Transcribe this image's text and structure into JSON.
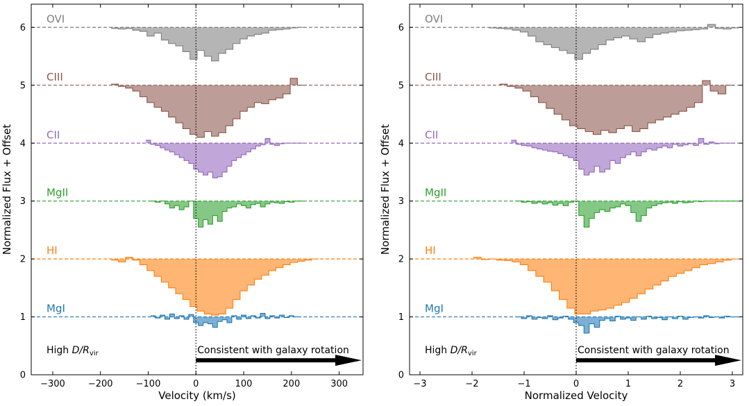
{
  "chart_data": [
    {
      "type": "step-area",
      "xlabel": "Velocity (km/s)",
      "ylabel": "Normalized Flux + Offset",
      "xlim": [
        -345,
        350
      ],
      "ylim": [
        0,
        6.4
      ],
      "xticks": [
        -300,
        -200,
        -100,
        0,
        100,
        200,
        300
      ],
      "xtick_labels": [
        "−300",
        "−200",
        "−100",
        "0",
        "100",
        "200",
        "300"
      ],
      "yticks": [
        0,
        1,
        2,
        3,
        4,
        5,
        6
      ],
      "ytick_labels": [
        "0",
        "1",
        "2",
        "3",
        "4",
        "5",
        "6"
      ],
      "vline_x": 0,
      "annotation_left": "High",
      "annotation_left_math": "D/R",
      "annotation_left_sub": "vir",
      "annotation_right": "Consistent with galaxy rotation",
      "arrow": {
        "from": 0,
        "to": 350,
        "y": 0.25
      },
      "series": [
        {
          "name": "OVI",
          "offset": 6,
          "color": "#7f7f7f",
          "x": [
            -170,
            -155,
            -140,
            -125,
            -110,
            -95,
            -80,
            -65,
            -50,
            -35,
            -20,
            -5,
            10,
            25,
            40,
            55,
            70,
            85,
            100,
            115,
            130,
            145,
            160,
            175,
            190,
            205,
            220
          ],
          "flux": [
            0.98,
            0.97,
            0.98,
            0.95,
            0.93,
            0.85,
            0.9,
            0.78,
            0.72,
            0.68,
            0.58,
            0.45,
            0.6,
            0.5,
            0.42,
            0.55,
            0.62,
            0.72,
            0.8,
            0.85,
            0.88,
            0.9,
            0.95,
            0.96,
            0.97,
            0.99,
            1.0
          ]
        },
        {
          "name": "CIII",
          "offset": 5,
          "color": "#8c564b",
          "x": [
            -170,
            -155,
            -140,
            -125,
            -110,
            -95,
            -80,
            -65,
            -50,
            -35,
            -20,
            -5,
            10,
            25,
            40,
            55,
            70,
            85,
            100,
            115,
            130,
            145,
            160,
            175,
            190,
            205,
            220
          ],
          "flux": [
            1.02,
            0.98,
            0.95,
            0.9,
            0.8,
            0.7,
            0.62,
            0.55,
            0.45,
            0.35,
            0.25,
            0.15,
            0.1,
            0.2,
            0.12,
            0.18,
            0.3,
            0.42,
            0.55,
            0.62,
            0.7,
            0.68,
            0.75,
            0.78,
            0.85,
            1.12,
            1.0
          ]
        },
        {
          "name": "CII",
          "offset": 4,
          "color": "#9467bd",
          "x": [
            -100,
            -90,
            -80,
            -70,
            -60,
            -50,
            -40,
            -30,
            -20,
            -10,
            0,
            10,
            20,
            30,
            40,
            50,
            60,
            70,
            80,
            90,
            100,
            110,
            120,
            130,
            140,
            150,
            160,
            170,
            180,
            190,
            200,
            210,
            220
          ],
          "flux": [
            1.05,
            0.98,
            0.96,
            0.92,
            0.88,
            0.85,
            0.8,
            0.75,
            0.7,
            0.65,
            0.55,
            0.5,
            0.45,
            0.5,
            0.4,
            0.42,
            0.5,
            0.6,
            0.7,
            0.75,
            0.8,
            0.85,
            0.9,
            0.95,
            0.97,
            1.08,
            0.98,
            0.96,
            0.99,
            1.0,
            1.0,
            1.0,
            1.0
          ]
        },
        {
          "name": "MgII",
          "offset": 3,
          "color": "#2ca02c",
          "x": [
            -90,
            -80,
            -70,
            -60,
            -50,
            -40,
            -30,
            -20,
            -10,
            0,
            10,
            20,
            30,
            40,
            50,
            60,
            70,
            80,
            90,
            100,
            110,
            120,
            130,
            140,
            150,
            160,
            170,
            180,
            190,
            200,
            210,
            220
          ],
          "flux": [
            1.0,
            0.98,
            1.0,
            0.95,
            0.88,
            0.92,
            0.85,
            0.9,
            1.0,
            0.7,
            0.55,
            0.68,
            0.6,
            0.75,
            0.65,
            0.82,
            0.88,
            0.9,
            0.95,
            0.92,
            0.88,
            0.94,
            0.96,
            0.9,
            0.95,
            0.98,
            0.97,
            0.96,
            0.99,
            0.98,
            1.0,
            1.0
          ]
        },
        {
          "name": "HI",
          "offset": 2,
          "color": "#ff7f0e",
          "x": [
            -170,
            -155,
            -140,
            -125,
            -110,
            -95,
            -80,
            -65,
            -50,
            -35,
            -20,
            -5,
            10,
            25,
            40,
            55,
            70,
            85,
            100,
            115,
            130,
            145,
            160,
            175,
            190,
            205,
            220,
            235,
            250
          ],
          "flux": [
            0.98,
            0.95,
            1.03,
            0.98,
            0.9,
            0.8,
            0.7,
            0.6,
            0.5,
            0.4,
            0.3,
            0.18,
            0.1,
            0.05,
            0.03,
            0.05,
            0.15,
            0.3,
            0.45,
            0.55,
            0.65,
            0.72,
            0.8,
            0.85,
            0.9,
            0.94,
            0.96,
            0.98,
            1.0
          ]
        },
        {
          "name": "MgI",
          "offset": 1,
          "color": "#1f77b4",
          "x": [
            -90,
            -80,
            -70,
            -60,
            -50,
            -40,
            -30,
            -20,
            -10,
            0,
            10,
            20,
            30,
            40,
            50,
            60,
            70,
            80,
            90,
            100,
            110,
            120,
            130,
            140,
            150,
            160,
            170,
            180,
            190,
            200,
            210
          ],
          "flux": [
            1.02,
            0.98,
            1.03,
            0.96,
            1.05,
            0.97,
            1.02,
            0.96,
            1.04,
            0.9,
            0.85,
            0.9,
            0.88,
            0.82,
            0.92,
            0.95,
            0.9,
            1.02,
            0.96,
            1.03,
            0.97,
            1.02,
            0.98,
            1.06,
            0.97,
            1.02,
            0.98,
            1.03,
            0.99,
            1.02,
            1.0
          ]
        }
      ]
    },
    {
      "type": "step-area",
      "xlabel": "Normalized Velocity",
      "ylabel": "Normalized Flux + Offset",
      "xlim": [
        -3.2,
        3.2
      ],
      "ylim": [
        0,
        6.4
      ],
      "xticks": [
        -3,
        -2,
        -1,
        0,
        1,
        2,
        3
      ],
      "xtick_labels": [
        "−3",
        "−2",
        "−1",
        "0",
        "1",
        "2",
        "3"
      ],
      "yticks": [
        0,
        1,
        2,
        3,
        4,
        5,
        6
      ],
      "ytick_labels": [
        "0",
        "1",
        "2",
        "3",
        "4",
        "5",
        "6"
      ],
      "vline_x": 0,
      "annotation_left": "High",
      "annotation_left_math": "D/R",
      "annotation_left_sub": "vir",
      "annotation_right": "Consistent with galaxy rotation",
      "arrow": {
        "from": 0,
        "to": 3.2,
        "y": 0.25
      },
      "series": [
        {
          "name": "OVI",
          "offset": 6,
          "color": "#7f7f7f",
          "x": [
            -1.6,
            -1.45,
            -1.3,
            -1.15,
            -1.0,
            -0.85,
            -0.7,
            -0.55,
            -0.4,
            -0.25,
            -0.1,
            0.05,
            0.2,
            0.35,
            0.5,
            0.65,
            0.8,
            0.95,
            1.1,
            1.25,
            1.4,
            1.55,
            1.7,
            1.85,
            2.0,
            2.15,
            2.3,
            2.45,
            2.6,
            2.75,
            2.9,
            3.05
          ],
          "flux": [
            0.99,
            0.98,
            0.97,
            0.95,
            0.92,
            0.85,
            0.75,
            0.7,
            0.65,
            0.6,
            0.55,
            0.45,
            0.55,
            0.62,
            0.7,
            0.78,
            0.82,
            0.85,
            0.8,
            0.75,
            0.82,
            0.88,
            0.9,
            0.92,
            0.94,
            0.95,
            0.96,
            0.97,
            1.05,
            0.98,
            0.97,
            0.99
          ]
        },
        {
          "name": "CIII",
          "offset": 5,
          "color": "#8c564b",
          "x": [
            -1.4,
            -1.25,
            -1.1,
            -0.95,
            -0.8,
            -0.65,
            -0.5,
            -0.35,
            -0.2,
            -0.05,
            0.1,
            0.25,
            0.4,
            0.55,
            0.7,
            0.85,
            1.0,
            1.15,
            1.3,
            1.45,
            1.6,
            1.75,
            1.9,
            2.05,
            2.2,
            2.35,
            2.5,
            2.65,
            2.8,
            2.95
          ],
          "flux": [
            1.02,
            0.98,
            0.95,
            0.9,
            0.8,
            0.7,
            0.6,
            0.5,
            0.4,
            0.3,
            0.25,
            0.2,
            0.15,
            0.22,
            0.18,
            0.25,
            0.3,
            0.2,
            0.25,
            0.35,
            0.4,
            0.45,
            0.5,
            0.55,
            0.62,
            0.7,
            1.08,
            0.9,
            0.85,
            1.0
          ]
        },
        {
          "name": "CII",
          "offset": 4,
          "color": "#9467bd",
          "x": [
            -1.2,
            -1.1,
            -1.0,
            -0.9,
            -0.8,
            -0.7,
            -0.6,
            -0.5,
            -0.4,
            -0.3,
            -0.2,
            -0.1,
            0.0,
            0.1,
            0.2,
            0.3,
            0.4,
            0.5,
            0.6,
            0.7,
            0.8,
            0.9,
            1.0,
            1.1,
            1.2,
            1.3,
            1.4,
            1.5,
            1.6,
            1.7,
            1.8,
            1.9,
            2.0,
            2.1,
            2.2,
            2.3,
            2.4,
            2.5,
            2.6,
            2.7,
            2.8,
            2.9,
            3.0
          ],
          "flux": [
            1.05,
            0.98,
            0.96,
            0.95,
            0.92,
            0.9,
            0.88,
            0.86,
            0.85,
            0.82,
            0.78,
            0.75,
            0.7,
            0.55,
            0.45,
            0.5,
            0.6,
            0.5,
            0.55,
            0.7,
            0.65,
            0.75,
            0.8,
            0.85,
            0.78,
            0.85,
            0.9,
            0.88,
            0.92,
            0.95,
            0.92,
            0.98,
            0.95,
            0.97,
            0.99,
            0.96,
            1.08,
            0.98,
            1.02,
            0.99,
            1.0,
            1.0,
            1.0
          ]
        },
        {
          "name": "MgII",
          "offset": 3,
          "color": "#2ca02c",
          "x": [
            -1.1,
            -1.0,
            -0.9,
            -0.8,
            -0.7,
            -0.6,
            -0.5,
            -0.4,
            -0.3,
            -0.2,
            -0.1,
            0.0,
            0.1,
            0.2,
            0.3,
            0.4,
            0.5,
            0.6,
            0.7,
            0.8,
            0.9,
            1.0,
            1.1,
            1.2,
            1.3,
            1.4,
            1.5,
            1.6,
            1.7,
            1.8,
            1.9,
            2.0,
            2.1,
            2.2,
            2.3,
            2.4,
            2.5,
            2.6,
            2.7,
            2.8,
            2.9,
            3.0,
            3.1
          ],
          "flux": [
            1.0,
            0.98,
            0.99,
            0.96,
            0.98,
            0.95,
            0.97,
            0.93,
            0.96,
            0.92,
            0.98,
            1.0,
            0.75,
            0.55,
            0.7,
            0.8,
            0.85,
            0.82,
            0.88,
            0.9,
            0.95,
            0.92,
            0.8,
            0.65,
            0.75,
            0.88,
            0.92,
            0.95,
            0.97,
            0.98,
            0.96,
            0.99,
            0.97,
            0.98,
            1.0,
            0.99,
            1.0,
            1.0,
            1.0,
            1.0,
            1.0,
            1.0,
            1.0
          ]
        },
        {
          "name": "HI",
          "offset": 2,
          "color": "#ff7f0e",
          "x": [
            -1.9,
            -1.75,
            -1.6,
            -1.45,
            -1.3,
            -1.15,
            -1.0,
            -0.85,
            -0.7,
            -0.55,
            -0.4,
            -0.25,
            -0.1,
            0.05,
            0.2,
            0.35,
            0.5,
            0.65,
            0.8,
            0.95,
            1.1,
            1.25,
            1.4,
            1.55,
            1.7,
            1.85,
            2.0,
            2.15,
            2.3,
            2.45,
            2.6,
            2.75,
            2.9,
            3.05
          ],
          "flux": [
            1.03,
            0.99,
            1.0,
            0.98,
            0.97,
            0.95,
            0.9,
            0.8,
            0.7,
            0.6,
            0.45,
            0.3,
            0.15,
            0.05,
            0.05,
            0.1,
            0.12,
            0.15,
            0.2,
            0.25,
            0.32,
            0.4,
            0.48,
            0.55,
            0.62,
            0.7,
            0.75,
            0.8,
            0.85,
            0.9,
            0.92,
            0.95,
            0.98,
            1.0
          ]
        },
        {
          "name": "MgI",
          "offset": 1,
          "color": "#1f77b4",
          "x": [
            -1.1,
            -1.0,
            -0.9,
            -0.8,
            -0.7,
            -0.6,
            -0.5,
            -0.4,
            -0.3,
            -0.2,
            -0.1,
            0.0,
            0.1,
            0.2,
            0.3,
            0.4,
            0.5,
            0.6,
            0.7,
            0.8,
            0.9,
            1.0,
            1.1,
            1.2,
            1.3,
            1.4,
            1.5,
            1.6,
            1.7,
            1.8,
            1.9,
            2.0,
            2.1,
            2.2,
            2.3,
            2.4,
            2.5,
            2.6,
            2.7,
            2.8,
            2.9,
            3.0,
            3.1
          ],
          "flux": [
            1.0,
            0.97,
            1.02,
            0.96,
            0.99,
            0.97,
            1.02,
            0.95,
            0.98,
            1.01,
            0.96,
            0.9,
            0.85,
            0.72,
            0.88,
            0.82,
            0.94,
            0.97,
            0.93,
            1.01,
            0.96,
            0.98,
            0.94,
            1.0,
            0.96,
            1.01,
            0.97,
            0.99,
            0.95,
            1.0,
            0.97,
            1.01,
            0.96,
            0.99,
            1.0,
            0.98,
            1.02,
            0.99,
            1.0,
            0.98,
            1.01,
            1.0,
            1.0
          ]
        }
      ]
    }
  ]
}
